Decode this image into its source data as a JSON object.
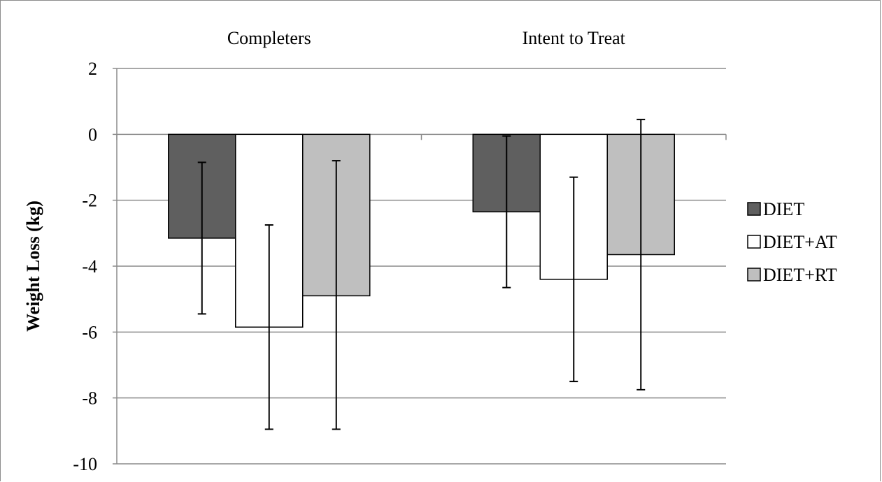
{
  "chart_data": {
    "type": "bar",
    "title": "",
    "xlabel": "",
    "ylabel": "Weight Loss (kg)",
    "ylim": [
      -10,
      2
    ],
    "yticks": [
      2,
      0,
      -2,
      -4,
      -6,
      -8,
      -10
    ],
    "ytick_labels": [
      "2",
      "0",
      "-2",
      "-4",
      "-6",
      "-8",
      "-10"
    ],
    "grid": true,
    "legend_position": "right",
    "category_label_position": "top",
    "categories": [
      "Completers",
      "Intent to Treat"
    ],
    "series": [
      {
        "name": "DIET",
        "color": "#5f5f5f",
        "values": [
          -3.15,
          -2.35
        ],
        "error_low": [
          -5.45,
          -4.65
        ],
        "error_high": [
          -0.85,
          -0.05
        ]
      },
      {
        "name": "DIET+AT",
        "color": "#ffffff",
        "values": [
          -5.85,
          -4.4
        ],
        "error_low": [
          -8.95,
          -7.5
        ],
        "error_high": [
          -2.75,
          -1.3
        ]
      },
      {
        "name": "DIET+RT",
        "color": "#bfbfbf",
        "values": [
          -4.9,
          -3.65
        ],
        "error_low": [
          -8.95,
          -7.75
        ],
        "error_high": [
          -0.8,
          0.45
        ]
      }
    ]
  }
}
